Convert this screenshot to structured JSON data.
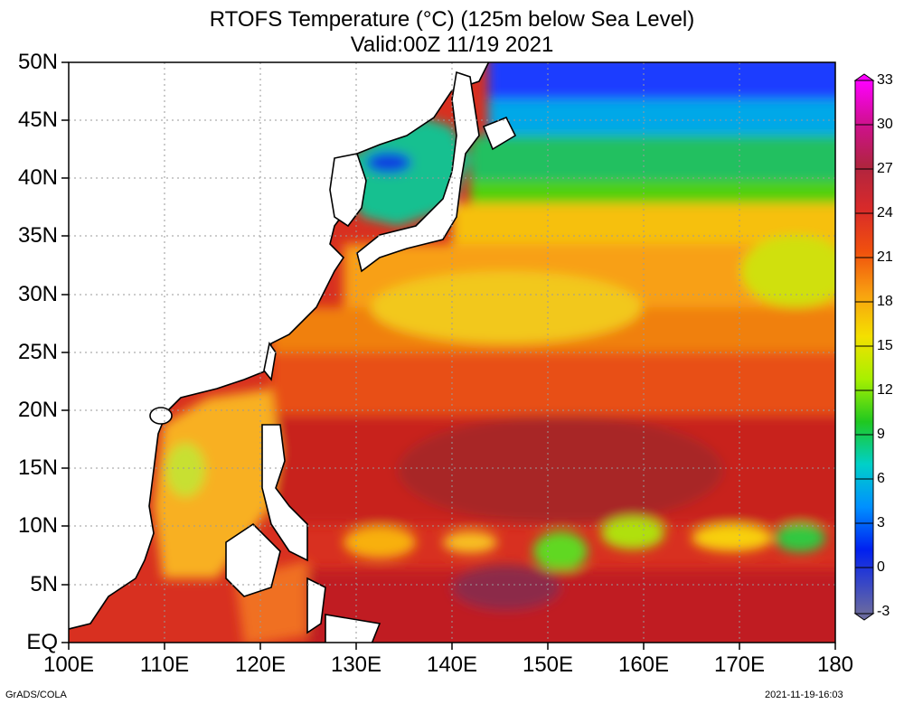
{
  "title": {
    "line1": "RTOFS Temperature (°C) (125m below Sea Level)",
    "line2": "Valid:00Z 11/19 2021"
  },
  "map": {
    "lat_range": [
      0,
      50
    ],
    "lon_range": [
      100,
      180
    ],
    "lat_labels": [
      "50N",
      "45N",
      "40N",
      "35N",
      "30N",
      "25N",
      "20N",
      "15N",
      "10N",
      "5N",
      "EQ"
    ],
    "lon_labels": [
      "100E",
      "110E",
      "120E",
      "130E",
      "140E",
      "150E",
      "160E",
      "170E",
      "180"
    ],
    "grid": "dotted"
  },
  "colorbar": {
    "labels": [
      "33",
      "30",
      "27",
      "24",
      "21",
      "18",
      "15",
      "12",
      "9",
      "6",
      "3",
      "0",
      "-3"
    ],
    "colors": [
      "#ff00ff",
      "#e600b0",
      "#c01060",
      "#a01e3c",
      "#d0282a",
      "#e8381c",
      "#f05a12",
      "#f5880e",
      "#f8b010",
      "#f6d80c",
      "#e8f000",
      "#b8f000",
      "#6ee000",
      "#28cc10",
      "#10c060",
      "#00d6c0",
      "#00b4f0",
      "#0080ff",
      "#0032ff",
      "#0018c8",
      "#3a3aa0",
      "#6060a0"
    ]
  },
  "footer": {
    "left": "GrADS/COLA",
    "right": "2021-11-19-16:03"
  }
}
